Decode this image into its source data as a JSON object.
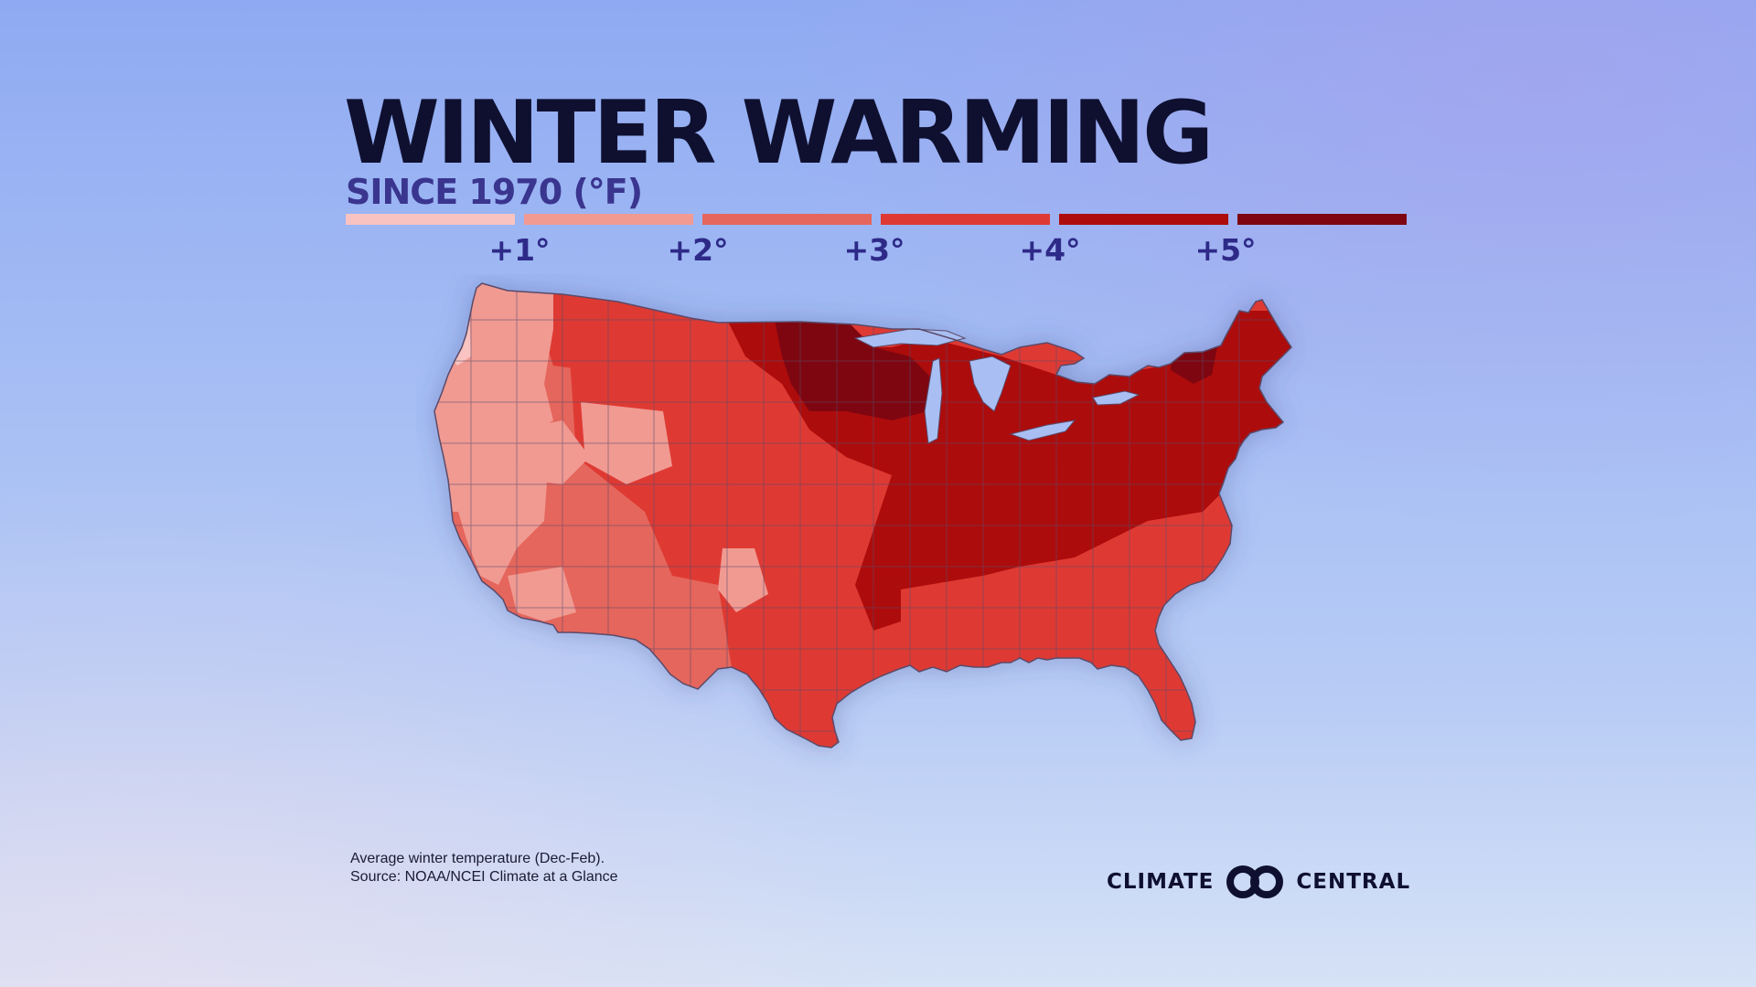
{
  "title": "WINTER WARMING",
  "subtitle": "SINCE 1970 (°F)",
  "legend": {
    "colors": [
      "#f8c3c0",
      "#f09a92",
      "#e5665c",
      "#de3a33",
      "#ad0c0c",
      "#7e0610"
    ],
    "ticks": [
      "+1°",
      "+2°",
      "+3°",
      "+4°",
      "+5°"
    ]
  },
  "map": {
    "region": "Contiguous United States",
    "border_color": "#5b4a6a",
    "regions_by_warming_class": [
      {
        "class": 0,
        "areas": [
          "Western Washington interior (Puget lowlands)"
        ]
      },
      {
        "class": 1,
        "areas": [
          "Washington",
          "Oregon",
          "northern California",
          "Nevada",
          "southern Idaho",
          "central Wyoming",
          "southern Arizona"
        ]
      },
      {
        "class": 2,
        "areas": [
          "California coast",
          "Utah",
          "Arizona",
          "western Colorado",
          "New Mexico",
          "western Texas",
          "central Texas",
          "Montana valleys"
        ]
      },
      {
        "class": 3,
        "areas": [
          "Montana",
          "the Dakotas",
          "Nebraska",
          "Kansas",
          "Oklahoma",
          "eastern Texas",
          "Southeast",
          "Florida",
          "Carolinas",
          "Virginia"
        ]
      },
      {
        "class": 4,
        "areas": [
          "Iowa",
          "Missouri",
          "Illinois",
          "Indiana",
          "Ohio",
          "Kentucky",
          "Michigan",
          "Pennsylvania",
          "New York",
          "New Jersey",
          "Massachusetts",
          "Maine"
        ]
      },
      {
        "class": 5,
        "areas": [
          "Minnesota",
          "northern Wisconsin",
          "Vermont",
          "New Hampshire"
        ]
      }
    ]
  },
  "note": {
    "line1": "Average winter temperature (Dec-Feb).",
    "line2": "Source: NOAA/NCEI Climate at a Glance"
  },
  "brand": {
    "left_word": "CLIMATE",
    "right_word": "CENTRAL",
    "logo_icon": "two-interlocked-rings-icon"
  }
}
